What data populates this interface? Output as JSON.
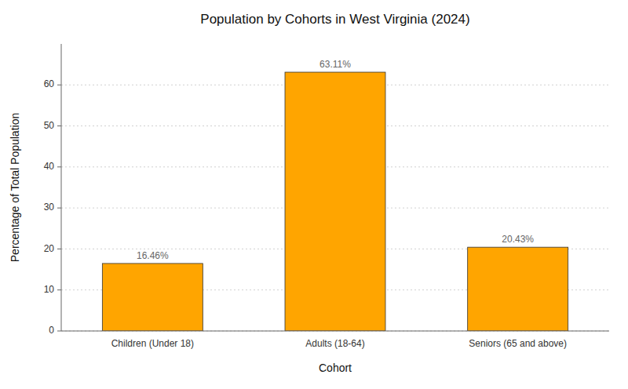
{
  "chart_data": {
    "type": "bar",
    "title": "Population by Cohorts in West Virginia (2024)",
    "xlabel": "Cohort",
    "ylabel": "Percentage of Total Population",
    "categories": [
      "Children (Under 18)",
      "Adults (18-64)",
      "Seniors (65 and above)"
    ],
    "values": [
      16.46,
      63.11,
      20.43
    ],
    "value_labels": [
      "16.46%",
      "63.11%",
      "20.43%"
    ],
    "data_labels": true,
    "color": "#FFA500",
    "ylim": [
      0,
      70
    ],
    "yticks": [
      0,
      10,
      20,
      30,
      40,
      50,
      60
    ],
    "grid": true
  }
}
